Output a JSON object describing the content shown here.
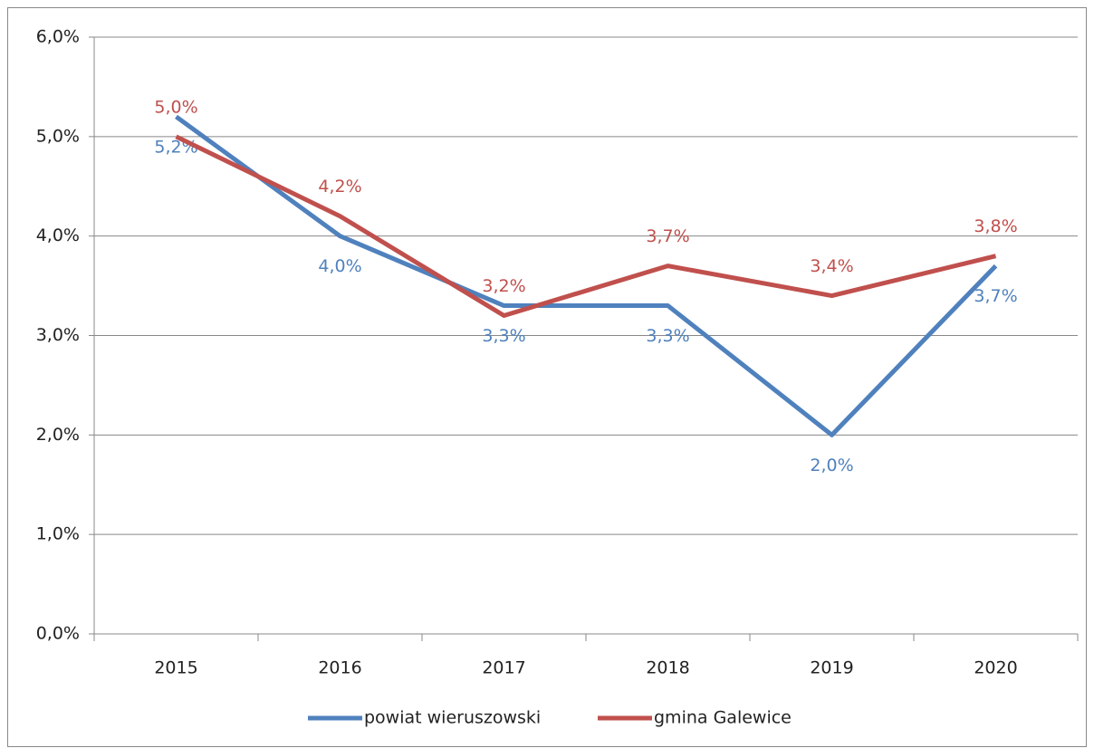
{
  "chart_data": {
    "type": "line",
    "categories": [
      "2015",
      "2016",
      "2017",
      "2018",
      "2019",
      "2020"
    ],
    "series": [
      {
        "name": "powiat wieruszowski",
        "color": "#4f81bd",
        "values": [
          5.2,
          4.0,
          3.3,
          3.3,
          2.0,
          3.7
        ],
        "value_labels": [
          "5,2%",
          "4,0%",
          "3,3%",
          "3,3%",
          "2,0%",
          "3,7%"
        ]
      },
      {
        "name": "gmina Galewice",
        "color": "#c0504d",
        "values": [
          5.0,
          4.2,
          3.2,
          3.7,
          3.4,
          3.8
        ],
        "value_labels": [
          "5,0%",
          "4,2%",
          "3,2%",
          "3,7%",
          "3,4%",
          "3,8%"
        ]
      }
    ],
    "ylim": [
      0,
      6
    ],
    "yticks": [
      {
        "value": 0,
        "label": "0,0%"
      },
      {
        "value": 1,
        "label": "1,0%"
      },
      {
        "value": 2,
        "label": "2,0%"
      },
      {
        "value": 3,
        "label": "3,0%"
      },
      {
        "value": 4,
        "label": "4,0%"
      },
      {
        "value": 5,
        "label": "5,0%"
      },
      {
        "value": 6,
        "label": "6,0%"
      }
    ],
    "grid": true,
    "legend": "bottom"
  }
}
